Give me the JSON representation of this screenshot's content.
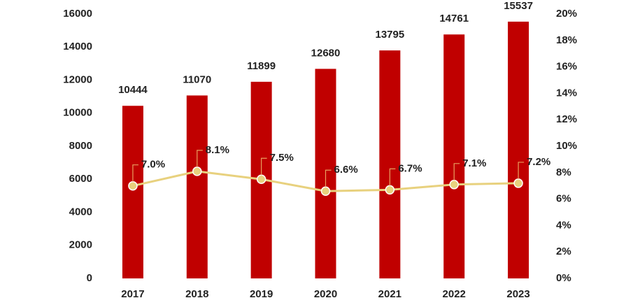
{
  "chart_data": {
    "type": "bar",
    "categories": [
      "2017",
      "2018",
      "2019",
      "2020",
      "2021",
      "2022",
      "2023"
    ],
    "series": [
      {
        "type": "bar",
        "color": "#c00000",
        "values": [
          10444,
          11070,
          11899,
          12680,
          13795,
          14761,
          15537
        ]
      },
      {
        "type": "line",
        "axis": "y2",
        "color": "#e8d17e",
        "values": [
          7.0,
          8.1,
          7.5,
          6.6,
          6.7,
          7.1,
          7.2
        ],
        "value_labels": [
          "7.0%",
          "8.1%",
          "7.5%",
          "6.6%",
          "6.7%",
          "7.1%",
          "7.2%"
        ]
      }
    ],
    "ylim": [
      0,
      16000
    ],
    "yticks": [
      0,
      2000,
      4000,
      6000,
      8000,
      10000,
      12000,
      14000,
      16000
    ],
    "y2lim": [
      0,
      20
    ],
    "y2ticks": [
      {
        "value": 0,
        "label": "0%"
      },
      {
        "value": 2,
        "label": "2%"
      },
      {
        "value": 4,
        "label": "4%"
      },
      {
        "value": 6,
        "label": "6%"
      },
      {
        "value": 8,
        "label": "8%"
      },
      {
        "value": 10,
        "label": "10%"
      },
      {
        "value": 12,
        "label": "12%"
      },
      {
        "value": 14,
        "label": "14%"
      },
      {
        "value": 16,
        "label": "16%"
      },
      {
        "value": 18,
        "label": "18%"
      },
      {
        "value": 20,
        "label": "20%"
      }
    ],
    "grid": false
  }
}
